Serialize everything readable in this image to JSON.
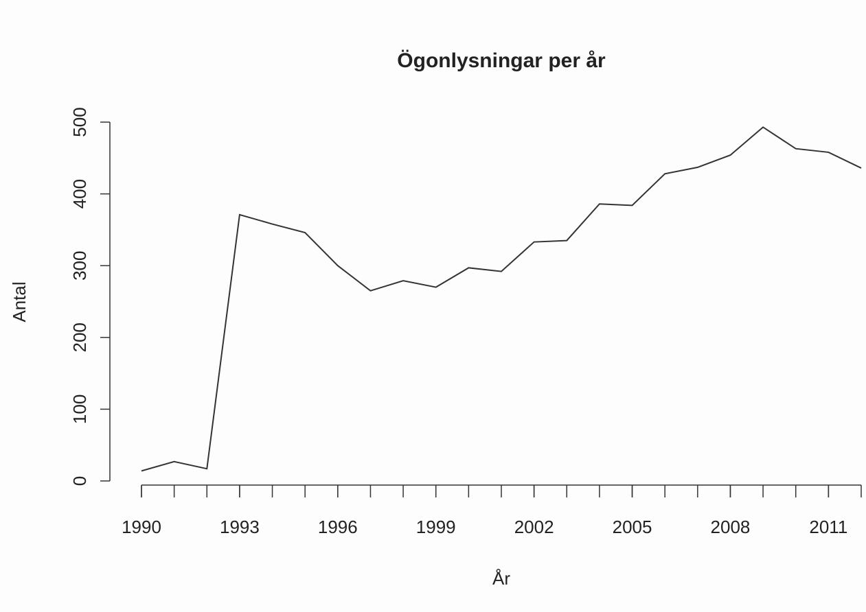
{
  "chart_data": {
    "type": "line",
    "title": "Ögonlysningar per år",
    "xlabel": "År",
    "ylabel": "Antal",
    "x": [
      1990,
      1991,
      1992,
      1993,
      1994,
      1995,
      1996,
      1997,
      1998,
      1999,
      2000,
      2001,
      2002,
      2003,
      2004,
      2005,
      2006,
      2007,
      2008,
      2009,
      2010,
      2011,
      2012
    ],
    "series": [
      {
        "color": "#333333",
        "values": [
          14,
          27,
          17,
          371,
          358,
          346,
          300,
          265,
          279,
          270,
          297,
          292,
          333,
          335,
          386,
          384,
          428,
          437,
          454,
          493,
          463,
          458,
          436
        ]
      }
    ],
    "xlim": [
      1990,
      2012
    ],
    "xticks": [
      1990,
      1993,
      1996,
      1999,
      2002,
      2005,
      2008,
      2011
    ],
    "ylim": [
      0,
      500
    ],
    "yticks": [
      0,
      100,
      200,
      300,
      400,
      500
    ]
  }
}
